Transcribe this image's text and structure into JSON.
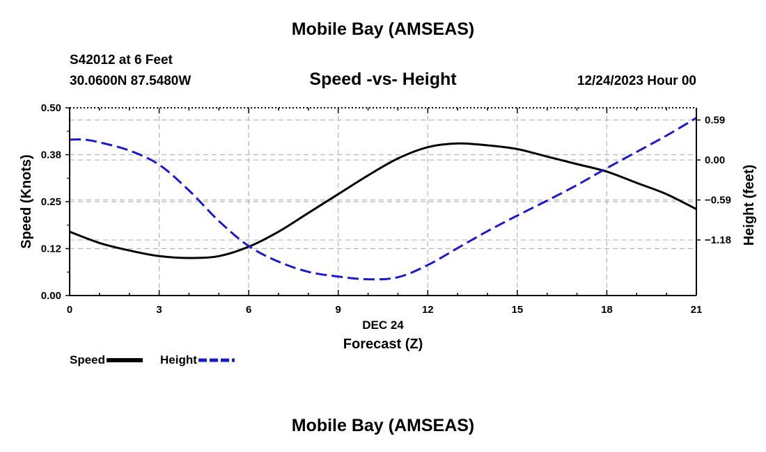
{
  "header": {
    "title": "Mobile Bay (AMSEAS)",
    "station": "S42012 at 6 Feet",
    "coords": "30.0600N  87.5480W",
    "subtitle": "Speed -vs- Height",
    "datetime": "12/24/2023 Hour 00"
  },
  "footer": {
    "title": "Mobile Bay (AMSEAS)"
  },
  "chart_data": {
    "type": "line",
    "title": "Speed -vs- Height",
    "xlabel": "Forecast (Z)",
    "xlabel_date": "DEC 24",
    "ylabel": "Speed (Knots)",
    "y2label": "Height (feet)",
    "xlim": [
      0,
      21
    ],
    "ylim": [
      0,
      0.5
    ],
    "y2lim": [
      -2.0,
      0.77
    ],
    "x_ticks": [
      0,
      3,
      6,
      9,
      12,
      15,
      18,
      21
    ],
    "x_tick_labels": [
      "0",
      "3",
      "6",
      "9",
      "12",
      "15",
      "18",
      "21"
    ],
    "y_ticks": [
      0,
      0.125,
      0.25,
      0.375,
      0.5
    ],
    "y_tick_labels": [
      "0.00",
      "0.12",
      "0.25",
      "0.38",
      "0.50"
    ],
    "y2_ticks": [
      -1.18,
      -0.59,
      0.0,
      0.59
    ],
    "y2_tick_labels": [
      "−1.18",
      "−0.59",
      "0.00",
      "0.59"
    ],
    "grid": true,
    "series": [
      {
        "name": "Speed",
        "axis": "left",
        "color": "#000000",
        "style": "solid",
        "x": [
          0,
          1,
          2,
          3,
          4,
          5,
          6,
          7,
          8,
          9,
          10,
          11,
          12,
          13,
          14,
          15,
          16,
          17,
          18,
          19,
          20,
          21
        ],
        "values": [
          0.17,
          0.14,
          0.12,
          0.105,
          0.1,
          0.105,
          0.13,
          0.17,
          0.22,
          0.27,
          0.32,
          0.365,
          0.395,
          0.405,
          0.4,
          0.39,
          0.37,
          0.35,
          0.33,
          0.3,
          0.27,
          0.23
        ]
      },
      {
        "name": "Height",
        "axis": "right",
        "color": "#1a1acc",
        "style": "dashed",
        "x": [
          0,
          0.5,
          1,
          2,
          3,
          4,
          5,
          6,
          7,
          8,
          9,
          10,
          11,
          12,
          13,
          14,
          15,
          16,
          17,
          18,
          19,
          20,
          21
        ],
        "values": [
          0.3,
          0.3,
          0.26,
          0.14,
          -0.07,
          -0.45,
          -0.9,
          -1.27,
          -1.5,
          -1.65,
          -1.72,
          -1.76,
          -1.73,
          -1.55,
          -1.3,
          -1.05,
          -0.82,
          -0.6,
          -0.37,
          -0.12,
          0.12,
          0.36,
          0.62
        ]
      }
    ]
  },
  "legend": {
    "speed_label": "Speed",
    "height_label": "Height"
  },
  "colors": {
    "speed": "#000000",
    "height": "#1a1acc",
    "grid": "#b4b4b4"
  }
}
